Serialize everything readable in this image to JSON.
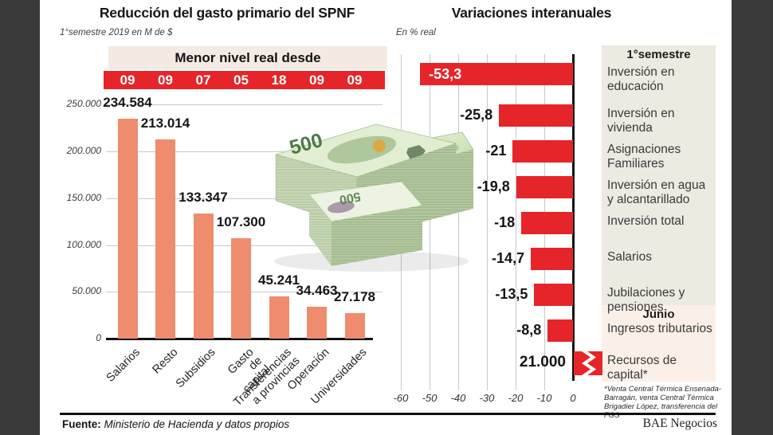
{
  "colors": {
    "accent_red": "#e52529",
    "salmon_bar": "#ef8c6e",
    "banner_bg": "#f3eae4",
    "panel_gray": "#eceae1",
    "panel_pink": "#fbf0e8",
    "grid_gray": "#c9c9c9",
    "frame_dark": "#3a3a3a"
  },
  "chart_data": [
    {
      "type": "bar",
      "title": "Reducción del gasto primario del SPNF",
      "subtitle": "1°semestre 2019 en M de $",
      "banner": {
        "label": "Menor nivel real desde",
        "years": [
          "09",
          "09",
          "07",
          "05",
          "18",
          "09",
          "09"
        ]
      },
      "categories": [
        "Salarios",
        "Resto",
        "Subsidios",
        "Gasto de capital",
        "Transferencias\na provincias",
        "Operación",
        "Universidades"
      ],
      "values": [
        234584,
        213014,
        133347,
        107300,
        45241,
        34463,
        27178
      ],
      "value_labels": [
        "234.584",
        "213.014",
        "133.347",
        "107.300",
        "45.241",
        "34.463",
        "27.178"
      ],
      "ylim": [
        0,
        250000
      ],
      "ytick_values": [
        0,
        50000,
        100000,
        150000,
        200000,
        250000
      ],
      "ytick_labels": [
        "0",
        "50.000",
        "100.000",
        "150.000",
        "200.000",
        "250.000"
      ],
      "grid": true,
      "legend": "none"
    },
    {
      "type": "bar-horizontal",
      "title": "Variaciones interanuales",
      "subtitle": "En % real",
      "xlim": [
        -60,
        10
      ],
      "xtick_values": [
        -60,
        -50,
        -40,
        -30,
        -20,
        -10,
        0
      ],
      "xtick_labels": [
        "-60",
        "-50",
        "-40",
        "-30",
        "-20",
        "-10",
        "0"
      ],
      "sections": [
        {
          "label": "1°semestre"
        },
        {
          "label": "Junio"
        }
      ],
      "items": [
        {
          "label": "Inversión en\neducación",
          "value": -53.3,
          "value_label": "-53,3",
          "section": "1°semestre"
        },
        {
          "label": "Inversión en\nvivienda",
          "value": -25.8,
          "value_label": "-25,8",
          "section": "1°semestre"
        },
        {
          "label": "Asignaciones\nFamiliares",
          "value": -21,
          "value_label": "-21",
          "section": "1°semestre"
        },
        {
          "label": "Inversión en agua\ny alcantarillado",
          "value": -19.8,
          "value_label": "-19,8",
          "section": "1°semestre"
        },
        {
          "label": "Inversión total",
          "value": -18,
          "value_label": "-18",
          "section": "1°semestre"
        },
        {
          "label": "Salarios",
          "value": -14.7,
          "value_label": "-14,7",
          "section": "1°semestre"
        },
        {
          "label": "Jubilaciones y\npensiones",
          "value": -13.5,
          "value_label": "-13,5",
          "section": "1°semestre"
        },
        {
          "label": "Ingresos tributarios",
          "value": -8.8,
          "value_label": "-8,8",
          "section": "Junio"
        },
        {
          "label": "Recursos de\ncapital*",
          "value": 21000,
          "value_label": "21.000",
          "section": "Junio",
          "bar_break": true,
          "positive": true
        }
      ],
      "footnote": "*Venta Central Térmica Ensenada-Barragán, venta Central Térmica Brigadier López, transferencia del FGS",
      "grid": true,
      "legend": "none"
    }
  ],
  "money_photo": {
    "bill_text": "500"
  },
  "footer": {
    "source_label": "Fuente:",
    "source_text": "Ministerio de Hacienda y datos propios",
    "brand": "BAE Negocios"
  }
}
